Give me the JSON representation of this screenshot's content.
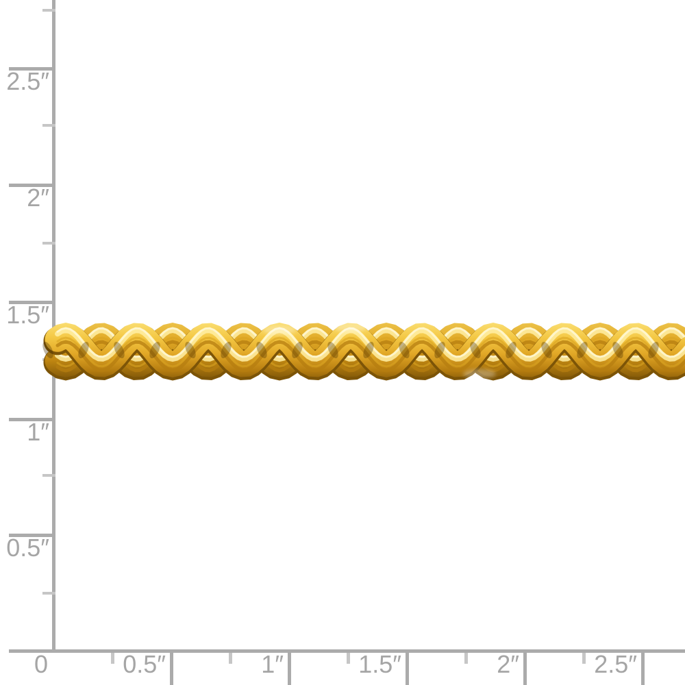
{
  "page": {
    "background": "#ffffff",
    "description": "Gold rope chain photographed on white with inch-ruler scale overlay"
  },
  "ruler": {
    "unit": "inches",
    "line_color": "#ababab",
    "minor_tick_color": "#c6c6c6",
    "label_color": "#a5a5a5",
    "vertical_labels": [
      "2.5″",
      "2″",
      "1.5″",
      "1″",
      "0.5″"
    ],
    "horizontal_labels": [
      "0",
      "0.5″",
      "1″",
      "1.5″",
      "2″",
      "2.5″"
    ]
  },
  "chain": {
    "type": "rope-chain",
    "material_colors": {
      "highlight": "#ffeea4",
      "streak": "#fff9d8",
      "light": "#f8dc74",
      "mid": "#d9a422",
      "deep": "#b67d10",
      "shadow": "#7c5407",
      "crevice": "#4a3104"
    },
    "ground_shadow_color": "#c9c9c9"
  }
}
